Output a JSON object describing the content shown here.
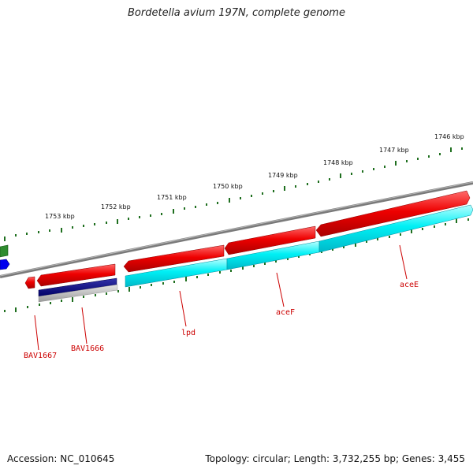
{
  "title": "Bordetella avium 197N, complete genome",
  "footer": {
    "accession": "Accession: NC_010645",
    "summary": "Topology: circular; Length: 3,732,255 bp; Genes: 3,455"
  },
  "scale_labels": [
    "1753 kbp",
    "1752 kbp",
    "1751 kbp",
    "1750 kbp",
    "1749 kbp",
    "1748 kbp",
    "1747 kbp",
    "1746 kbp"
  ],
  "gene_labels": [
    "BAV1667",
    "BAV1666",
    "lpd",
    "aceF",
    "aceE"
  ],
  "colors": {
    "backbone": "#808080",
    "forward_gene": "#e00000",
    "cds": "#00e5ee",
    "dark_feature": "#00008b",
    "tick": "#1f6f1f",
    "label": "#cc0000"
  }
}
